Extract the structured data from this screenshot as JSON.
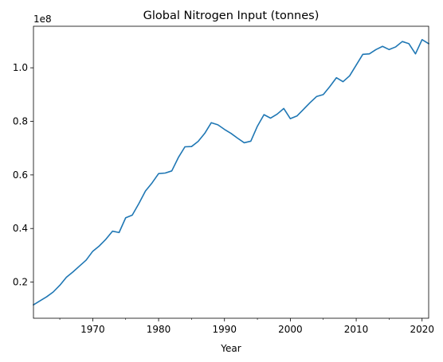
{
  "chart_data": {
    "type": "line",
    "title": "Global Nitrogen Input (tonnes)",
    "xlabel": "Year",
    "ylabel": "",
    "y_offset_label": "1e8",
    "xlim": [
      1961,
      2021
    ],
    "ylim": [
      0.065,
      1.155
    ],
    "grid": false,
    "x_ticks": [
      1970,
      1980,
      1990,
      2000,
      2010,
      2020
    ],
    "x_tick_labels": [
      "1970",
      "1980",
      "1990",
      "2000",
      "2010",
      "2020"
    ],
    "y_ticks": [
      0.2,
      0.4,
      0.6,
      0.8,
      1.0
    ],
    "y_tick_labels": [
      "0.2",
      "0.4",
      "0.6",
      "0.8",
      "1.0"
    ],
    "colors": {
      "series": "#1f77b4"
    },
    "series": [
      {
        "x": [
          1961,
          1962,
          1963,
          1964,
          1965,
          1966,
          1967,
          1968,
          1969,
          1970,
          1971,
          1972,
          1973,
          1974,
          1975,
          1976,
          1977,
          1978,
          1979,
          1980,
          1981,
          1982,
          1983,
          1984,
          1985,
          1986,
          1987,
          1988,
          1989,
          1990,
          1991,
          1992,
          1993,
          1994,
          1995,
          1996,
          1997,
          1998,
          1999,
          2000,
          2001,
          2002,
          2003,
          2004,
          2005,
          2006,
          2007,
          2008,
          2009,
          2010,
          2011,
          2012,
          2013,
          2014,
          2015,
          2016,
          2017,
          2018,
          2019,
          2020,
          2021
        ],
        "values": [
          0.115,
          0.13,
          0.145,
          0.163,
          0.188,
          0.218,
          0.238,
          0.26,
          0.282,
          0.315,
          0.335,
          0.36,
          0.39,
          0.385,
          0.44,
          0.45,
          0.493,
          0.54,
          0.57,
          0.605,
          0.607,
          0.615,
          0.665,
          0.705,
          0.706,
          0.725,
          0.755,
          0.795,
          0.787,
          0.77,
          0.755,
          0.737,
          0.72,
          0.726,
          0.782,
          0.825,
          0.812,
          0.827,
          0.848,
          0.81,
          0.82,
          0.845,
          0.87,
          0.893,
          0.9,
          0.93,
          0.963,
          0.948,
          0.97,
          1.01,
          1.05,
          1.052,
          1.068,
          1.08,
          1.068,
          1.078,
          1.098,
          1.09,
          1.052,
          1.105,
          1.09
        ]
      }
    ]
  }
}
